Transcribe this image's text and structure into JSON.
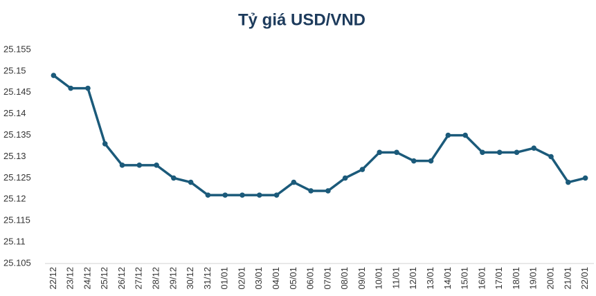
{
  "chart_data": {
    "type": "line",
    "title": "Tỷ giá USD/VND",
    "categories": [
      "22/12",
      "23/12",
      "24/12",
      "25/12",
      "26/12",
      "27/12",
      "28/12",
      "29/12",
      "30/12",
      "31/12",
      "01/01",
      "02/01",
      "03/01",
      "04/01",
      "05/01",
      "06/01",
      "07/01",
      "08/01",
      "09/01",
      "10/01",
      "11/01",
      "12/01",
      "13/01",
      "14/01",
      "15/01",
      "16/01",
      "17/01",
      "18/01",
      "19/01",
      "20/01",
      "21/01",
      "22/01"
    ],
    "values": [
      25.149,
      25.146,
      25.146,
      25.133,
      25.128,
      25.128,
      25.128,
      25.125,
      25.124,
      25.121,
      25.121,
      25.121,
      25.121,
      25.121,
      25.124,
      25.122,
      25.122,
      25.125,
      25.127,
      25.131,
      25.131,
      25.129,
      25.129,
      25.135,
      25.135,
      25.131,
      25.131,
      25.131,
      25.132,
      25.13,
      25.124,
      25.125
    ],
    "color": "#1b5a7a",
    "ylim": [
      25.105,
      25.155
    ],
    "yticks": [
      25.105,
      25.11,
      25.115,
      25.12,
      25.125,
      25.13,
      25.135,
      25.14,
      25.145,
      25.15,
      25.155
    ]
  }
}
